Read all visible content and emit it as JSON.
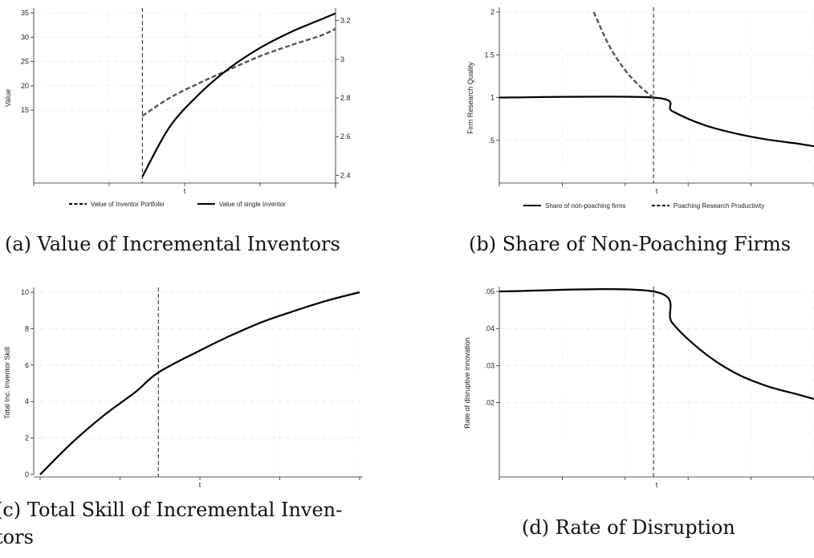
{
  "chart_data": [
    {
      "id": "a",
      "type": "line",
      "caption": "(a) Value of Incremental Inventors",
      "xlabel": "t",
      "ylabel": "Value",
      "ylim_left": [
        0,
        35
      ],
      "yticks_left": [
        15,
        20,
        25,
        30,
        35
      ],
      "ylim_right": [
        2.36,
        3.24
      ],
      "yticks_right": [
        2.4,
        2.6,
        2.8,
        3,
        3.2
      ],
      "yticks_right_labels": [
        "2.4",
        "2.6",
        "2.8",
        "3",
        "3.2"
      ],
      "xlim": [
        0,
        10
      ],
      "xticks": [
        0,
        2.5,
        5,
        7.5,
        10
      ],
      "vline": 3.6,
      "series": [
        {
          "name": "Value of Inventor Portfolio",
          "style": "dashed",
          "color": "#555555",
          "axis": "left",
          "x": [
            3.6,
            4.5,
            5.5,
            6.5,
            7.5,
            8.5,
            9.5,
            10.0
          ],
          "y": [
            13.8,
            17.5,
            20.6,
            23.4,
            26.1,
            28.3,
            30.3,
            31.7
          ]
        },
        {
          "name": "Value of single Inventor",
          "style": "solid",
          "color": "#000000",
          "axis": "left",
          "x": [
            3.6,
            4.5,
            5.5,
            6.5,
            7.5,
            8.5,
            9.5,
            10.0
          ],
          "y": [
            1.3,
            11.5,
            18.4,
            23.7,
            27.8,
            31.0,
            33.6,
            34.9
          ]
        }
      ],
      "legend": [
        "Value of Inventor Portfolio",
        "Value of single Inventor"
      ],
      "legend_placement": "bottom",
      "grid": true
    },
    {
      "id": "b",
      "type": "line",
      "caption": "(b) Share of Non-Poaching Firms",
      "xlabel": "t",
      "ylabel": "Firm Research Quality",
      "ylim": [
        0,
        2
      ],
      "yticks": [
        0.5,
        1,
        1.5,
        2
      ],
      "ytick_labels": [
        ".5",
        "1",
        "1.5",
        "2"
      ],
      "xlim": [
        0,
        10
      ],
      "xticks": [
        0,
        2,
        4,
        6,
        8,
        10
      ],
      "vline": 4.9,
      "series": [
        {
          "name": "Share of non-poaching firms",
          "style": "solid",
          "color": "#000000",
          "x": [
            0,
            4.9,
            5.5,
            6.5,
            7.5,
            8.5,
            9.5,
            10.0
          ],
          "y": [
            1.0,
            1.0,
            0.84,
            0.68,
            0.58,
            0.51,
            0.46,
            0.43
          ]
        },
        {
          "name": "Poaching Research Productivity",
          "style": "dashed",
          "color": "#555555",
          "x": [
            3.0,
            3.5,
            4.0,
            4.5,
            4.9
          ],
          "y": [
            2.0,
            1.6,
            1.32,
            1.12,
            1.0
          ]
        }
      ],
      "legend": [
        "Share of non-poaching firms",
        "Poaching Research Productivity"
      ],
      "legend_placement": "bottom",
      "grid": true
    },
    {
      "id": "c",
      "type": "line",
      "caption_line1": "(c) Total Skill of Incremental Inven-",
      "caption_line2": "tors",
      "xlabel": "t",
      "ylabel": "Total Inc. Inventor Skill",
      "ylim": [
        0,
        10
      ],
      "yticks": [
        0,
        2,
        4,
        6,
        8,
        10
      ],
      "ytick_labels": [
        "0",
        "2",
        "4",
        "6",
        "8",
        "10"
      ],
      "xlim": [
        0,
        10
      ],
      "xticks": [
        0,
        2.5,
        5,
        7.5,
        10
      ],
      "vline": 3.7,
      "series": [
        {
          "name": "Total Inc. Inventor Skill",
          "style": "solid",
          "color": "#000000",
          "x": [
            0,
            1,
            2,
            3,
            3.7,
            5,
            6,
            7,
            8,
            9,
            10
          ],
          "y": [
            0,
            1.75,
            3.25,
            4.55,
            5.6,
            6.8,
            7.65,
            8.4,
            9.0,
            9.55,
            10.0
          ]
        }
      ],
      "grid": true
    },
    {
      "id": "d",
      "type": "line",
      "caption": "(d) Rate of Disruption",
      "xlabel": "t",
      "ylabel": "Rate of disruptive innovation",
      "ylim": [
        0,
        0.05
      ],
      "yticks": [
        0.02,
        0.03,
        0.04,
        0.05
      ],
      "ytick_labels": [
        ".02",
        ".03",
        ".04",
        ".05"
      ],
      "xlim": [
        0,
        10
      ],
      "xticks": [
        0,
        2,
        4,
        6,
        8,
        10
      ],
      "vline": 4.9,
      "series": [
        {
          "name": "Rate of disruptive innovation",
          "style": "solid",
          "color": "#000000",
          "x": [
            0,
            4.9,
            5.5,
            6.5,
            7.5,
            8.5,
            9.5,
            10.0
          ],
          "y": [
            0.05,
            0.05,
            0.0415,
            0.0335,
            0.028,
            0.0245,
            0.0222,
            0.021
          ]
        }
      ],
      "grid": true
    }
  ]
}
